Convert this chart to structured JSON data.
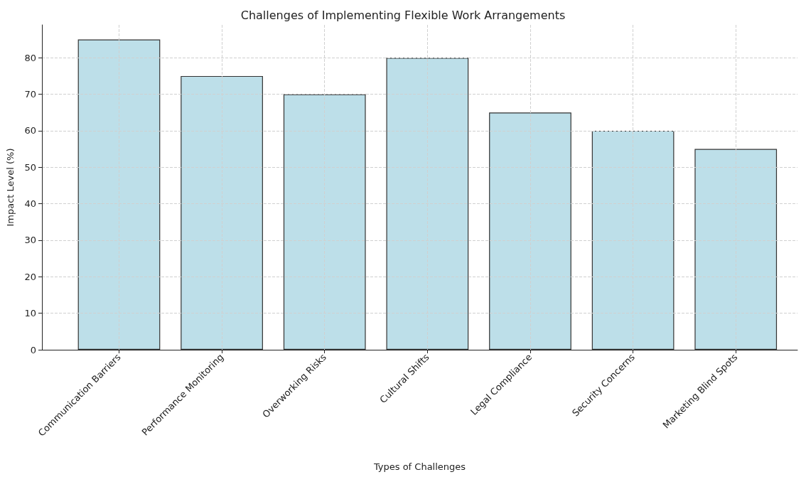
{
  "chart_data": {
    "type": "bar",
    "title": "Challenges of Implementing Flexible Work Arrangements",
    "xlabel": "Types of Challenges",
    "ylabel": "Impact Level (%)",
    "categories": [
      "Communication Barriers",
      "Performance Monitoring",
      "Overworking Risks",
      "Cultural Shifts",
      "Legal Compliance",
      "Security Concerns",
      "Marketing Blind Spots"
    ],
    "values": [
      85,
      75,
      70,
      80,
      65,
      60,
      55
    ],
    "color": "#bddfe9",
    "ylim": [
      0,
      89
    ],
    "yticks": [
      0,
      10,
      20,
      30,
      40,
      50,
      60,
      70,
      80
    ],
    "grid": true
  }
}
